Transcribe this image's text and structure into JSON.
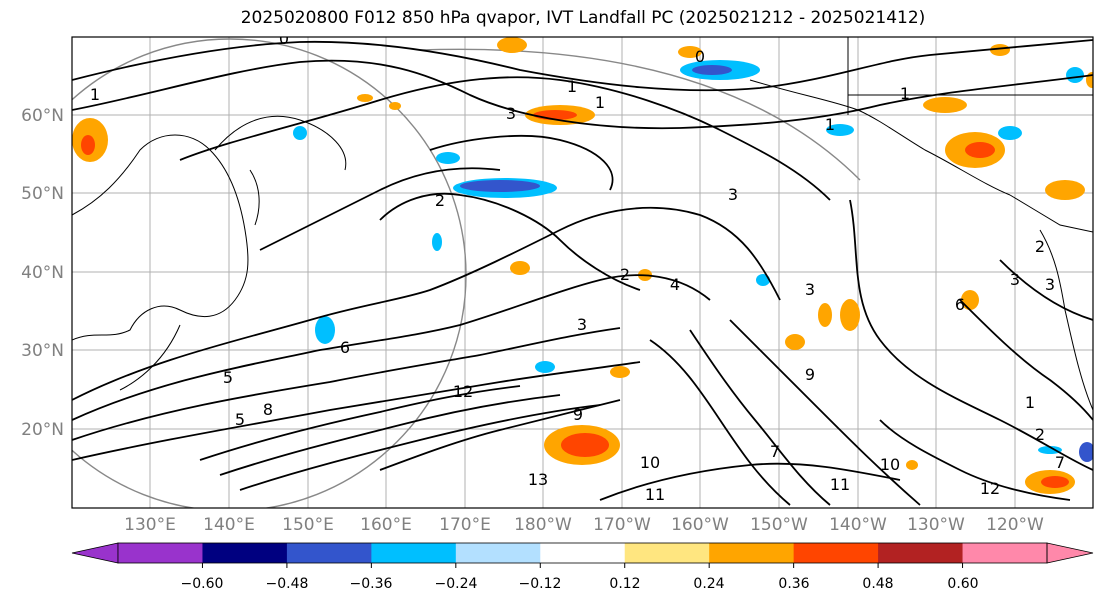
{
  "title": "2025020800 F012 850 hPa qvapor, IVT Landfall PC (2025021212 - 2025021412)",
  "map": {
    "lat_labels": [
      "60°N",
      "50°N",
      "40°N",
      "30°N",
      "20°N"
    ],
    "lon_labels": [
      "130°E",
      "140°E",
      "150°E",
      "160°E",
      "170°E",
      "180°W",
      "170°W",
      "160°W",
      "150°W",
      "140°W",
      "130°W",
      "120°W"
    ],
    "contour_labels": [
      "0",
      "0",
      "1",
      "3",
      "1",
      "1",
      "2",
      "3",
      "1",
      "2",
      "4",
      "3",
      "6",
      "5",
      "8",
      "12",
      "7",
      "9",
      "11",
      "13",
      "10",
      "3",
      "3",
      "2",
      "1",
      "2",
      "12",
      "7",
      "1",
      "3",
      "6",
      "11",
      "10",
      "9",
      "5"
    ]
  },
  "colorbar": {
    "ticks": [
      "−0.60",
      "−0.48",
      "−0.36",
      "−0.24",
      "−0.12",
      "0.12",
      "0.24",
      "0.36",
      "0.48",
      "0.60"
    ],
    "colors": [
      "#9933cc",
      "#000080",
      "#3355cc",
      "#00bfff",
      "#b3e0ff",
      "#ffffff",
      "#ffe680",
      "#ffa500",
      "#ff4500",
      "#b22222",
      "#ff88aa"
    ]
  }
}
